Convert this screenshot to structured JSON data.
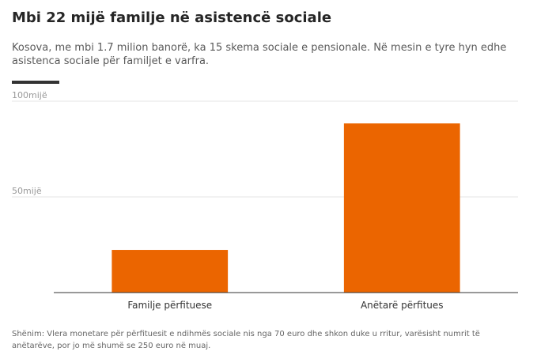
{
  "header": {
    "title": "Mbi 22 mijë familje në asistencë sociale",
    "subtitle": "Kosova, me mbi 1.7 milion banorë, ka 15 skema sociale e pensionale. Në mesin e tyre hyn edhe asistenca sociale për familjet e varfra."
  },
  "chart_data": {
    "type": "bar",
    "title": "Mbi 22 mijë familje në asistencë sociale",
    "subtitle": "Kosova, me mbi 1.7 milion banorë, ka 15 skema sociale e pensionale. Në mesin e tyre hyn edhe asistenca sociale për familjet e varfra.",
    "categories": [
      "Familje përfituese",
      "Anëtarë përfitues"
    ],
    "values": [
      22300,
      88400
    ],
    "xlabel": "",
    "ylabel": "",
    "ylim": [
      0,
      100000
    ],
    "yticks": [
      {
        "value": 50000,
        "label": "50mijë"
      },
      {
        "value": 100000,
        "label": "100mijë"
      }
    ],
    "bar_color": "#eb6500",
    "grid": true,
    "legend": "none"
  },
  "footer": {
    "note": "Shënim: Vlera monetare për përfituesit e ndihmës sociale nis nga 70 euro dhe shkon duke u rritur, varësisht numrit të anëtarëve, por jo më shumë se 250 euro në muaj."
  }
}
